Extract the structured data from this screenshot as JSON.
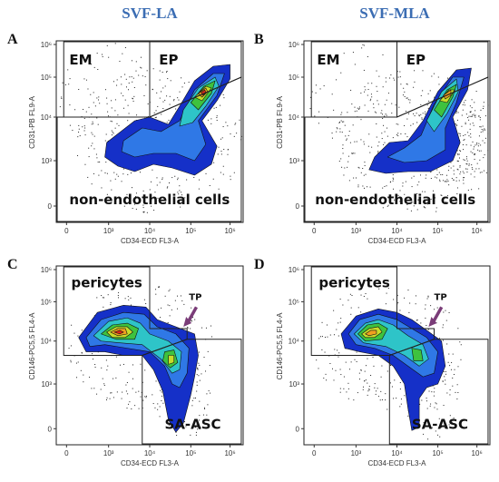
{
  "column_titles": [
    "SVF-LA",
    "SVF-MLA"
  ],
  "chart_data": [
    {
      "type": "scatter",
      "panel": "A",
      "column": "SVF-LA",
      "xlabel": "CD34-ECD FL3-A",
      "ylabel": "CD31-PB FL9-A",
      "xscale": "log",
      "yscale": "log",
      "xticks": [
        "0",
        "10³",
        "10⁴",
        "10⁵",
        "10⁶"
      ],
      "yticks": [
        "0",
        "10³",
        "10⁴",
        "10⁵",
        "10⁶"
      ],
      "first_xtick_color": "#2e9b6a",
      "gates": [
        {
          "name": "EM",
          "label": "EM"
        },
        {
          "name": "EP",
          "label": "EP"
        },
        {
          "name": "non-endothelial",
          "label": "non-endothelial cells"
        }
      ]
    },
    {
      "type": "scatter",
      "panel": "B",
      "column": "SVF-MLA",
      "xlabel": "CD34-ECD FL3-A",
      "ylabel": "CD31-PB FL9-A",
      "xscale": "log",
      "yscale": "log",
      "xticks": [
        "0",
        "10³",
        "10⁴",
        "10⁵",
        "10⁶"
      ],
      "yticks": [
        "0",
        "10³",
        "10⁴",
        "10⁵",
        "10⁶"
      ],
      "gates": [
        {
          "name": "EM",
          "label": "EM"
        },
        {
          "name": "EP",
          "label": "EP"
        },
        {
          "name": "non-endothelial",
          "label": "non-endothelial cells"
        }
      ]
    },
    {
      "type": "scatter",
      "panel": "C",
      "column": "SVF-LA",
      "xlabel": "CD34-ECD FL3-A",
      "ylabel": "CD146-PC5,5 FL4-A",
      "xscale": "log",
      "yscale": "log",
      "xticks": [
        "0",
        "10³",
        "10⁴",
        "10⁵",
        "10⁶"
      ],
      "yticks": [
        "0",
        "10³",
        "10⁴",
        "10⁵",
        "10⁶"
      ],
      "gates": [
        {
          "name": "pericytes",
          "label": "pericytes"
        },
        {
          "name": "SA-ASC",
          "label": "SA-ASC"
        }
      ],
      "annotations": [
        {
          "text": "TP",
          "arrow": true
        }
      ]
    },
    {
      "type": "scatter",
      "panel": "D",
      "column": "SVF-MLA",
      "xlabel": "CD34-ECD FL3-A",
      "ylabel": "CD146-PC5,5 FL4-A",
      "xscale": "log",
      "yscale": "log",
      "xticks": [
        "0",
        "10³",
        "10⁴",
        "10⁵",
        "10⁶"
      ],
      "yticks": [
        "0",
        "10³",
        "10⁴",
        "10⁵",
        "10⁶"
      ],
      "gates": [
        {
          "name": "pericytes",
          "label": "pericytes"
        },
        {
          "name": "SA-ASC",
          "label": "SA-ASC"
        }
      ],
      "annotations": [
        {
          "text": "TP",
          "arrow": true
        }
      ]
    }
  ],
  "colors": {
    "title": "#3b6db3",
    "contour_levels": [
      "#1530c8",
      "#2f78e6",
      "#2ec4c8",
      "#3ec23e",
      "#c8dc2a",
      "#f0a020",
      "#e02818"
    ],
    "arrow": "#7a3c78",
    "gate": "#222222"
  }
}
